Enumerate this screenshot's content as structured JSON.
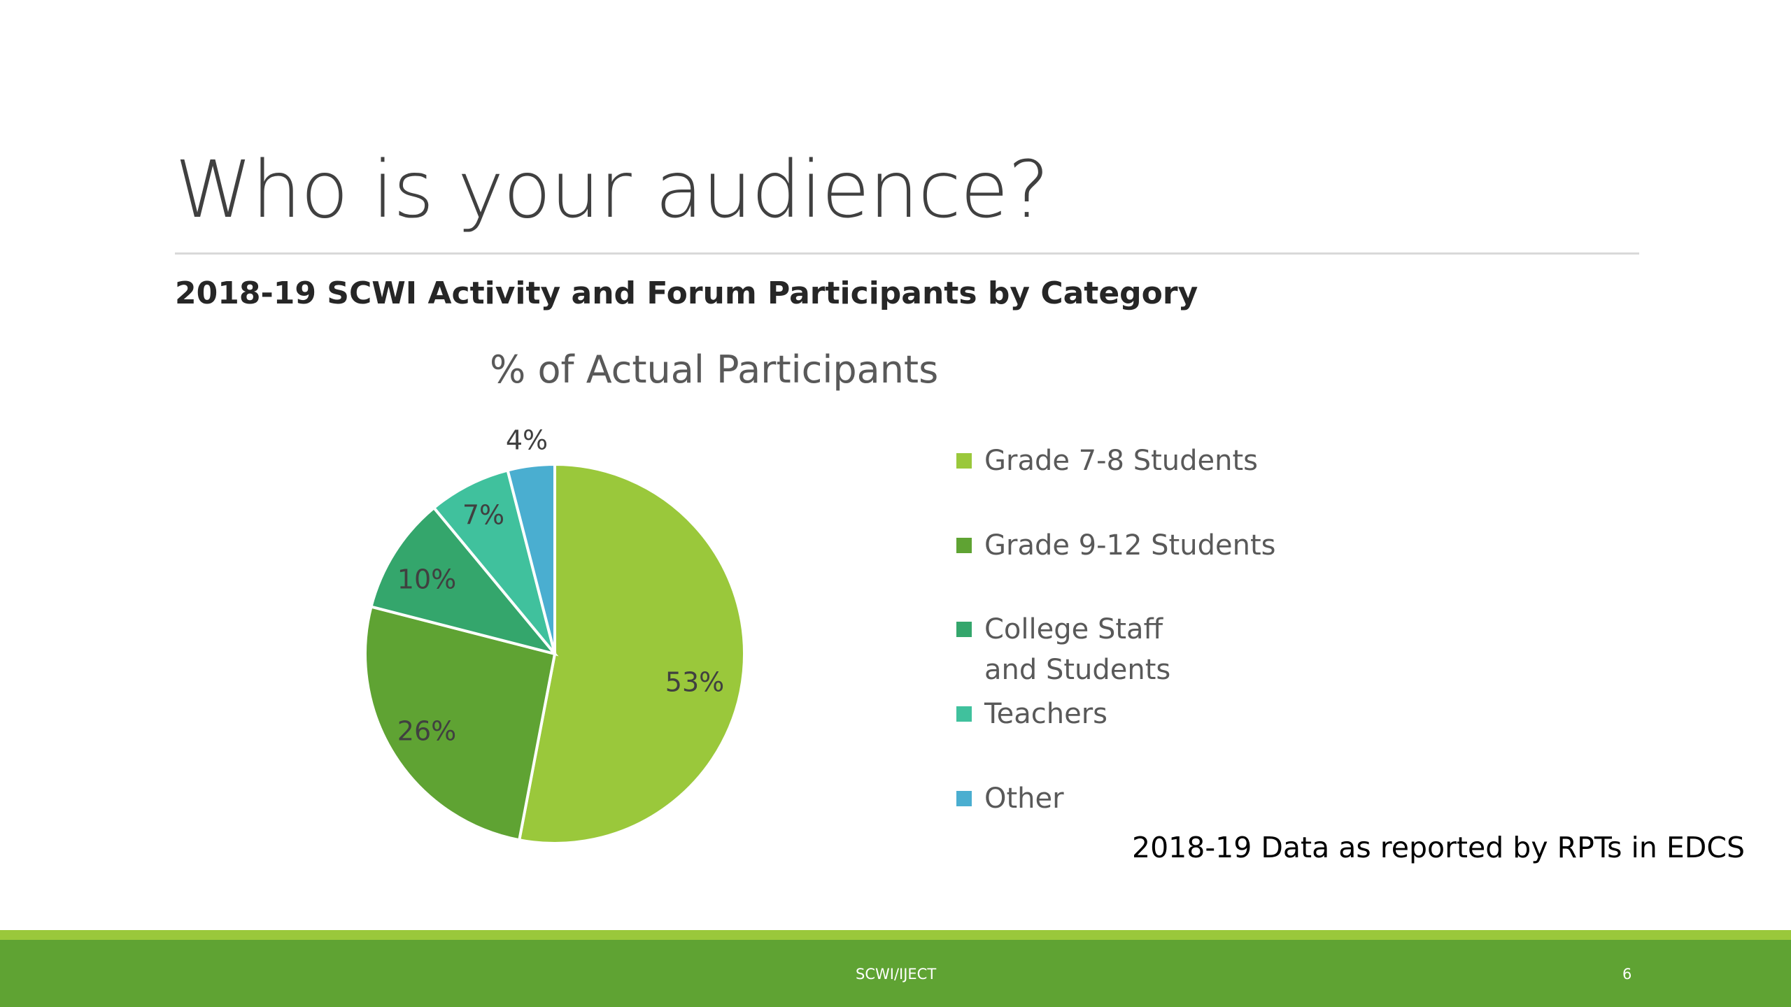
{
  "slide": {
    "title": "Who is your audience?",
    "subtitle": "2018-19 SCWI Activity and Forum Participants by Category",
    "source_note": "2018-19 Data as reported by RPTs in EDCS",
    "footer_text": "SCWI/IJECT",
    "page_number": "6"
  },
  "colors": {
    "footer_light": "#9ac83b",
    "footer_dark": "#5fa333"
  },
  "chart_data": {
    "type": "pie",
    "title": "% of Actual Participants",
    "legend_position": "right",
    "categories": [
      "Grade 7-8 Students",
      "Grade 9-12 Students",
      "College Staff and Students",
      "Teachers",
      "Other"
    ],
    "values": [
      53,
      26,
      10,
      7,
      4
    ],
    "data_labels": [
      "53%",
      "26%",
      "10%",
      "7%",
      "4%"
    ],
    "colors": [
      "#9ac83b",
      "#5fa333",
      "#34a66c",
      "#40c19d",
      "#4aaed0"
    ]
  }
}
